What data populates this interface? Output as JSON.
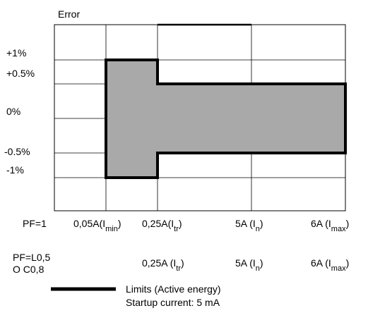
{
  "title": "Error",
  "y_labels": [
    "+1%",
    "+0.5%",
    "0%",
    "-0.5%",
    "-1%"
  ],
  "row1": {
    "lead": "PF=1",
    "ticks": [
      {
        "main": "0,05A(I",
        "sub": "min",
        "tail": ")"
      },
      {
        "main": "0,25A(I",
        "sub": "tr",
        "tail": ")"
      },
      {
        "main": "5A (I",
        "sub": "n",
        "tail": ")"
      },
      {
        "main": "6A (I",
        "sub": "max",
        "tail": ")"
      }
    ]
  },
  "row2": {
    "lead1": "PF=L0,5",
    "lead2": "O C0,8",
    "ticks": [
      {
        "main": "0,25A (I",
        "sub": "tr",
        "tail": ")"
      },
      {
        "main": "5A (I",
        "sub": "n",
        "tail": ")"
      },
      {
        "main": "6A (I",
        "sub": "max",
        "tail": ")"
      }
    ]
  },
  "legend": {
    "line1": "Limits (Active energy)",
    "line2": "Startup current: 5 mA"
  },
  "colors": {
    "limit_fill": "#a9a9a9",
    "limit_stroke": "#000000",
    "grid": "#000000"
  }
}
